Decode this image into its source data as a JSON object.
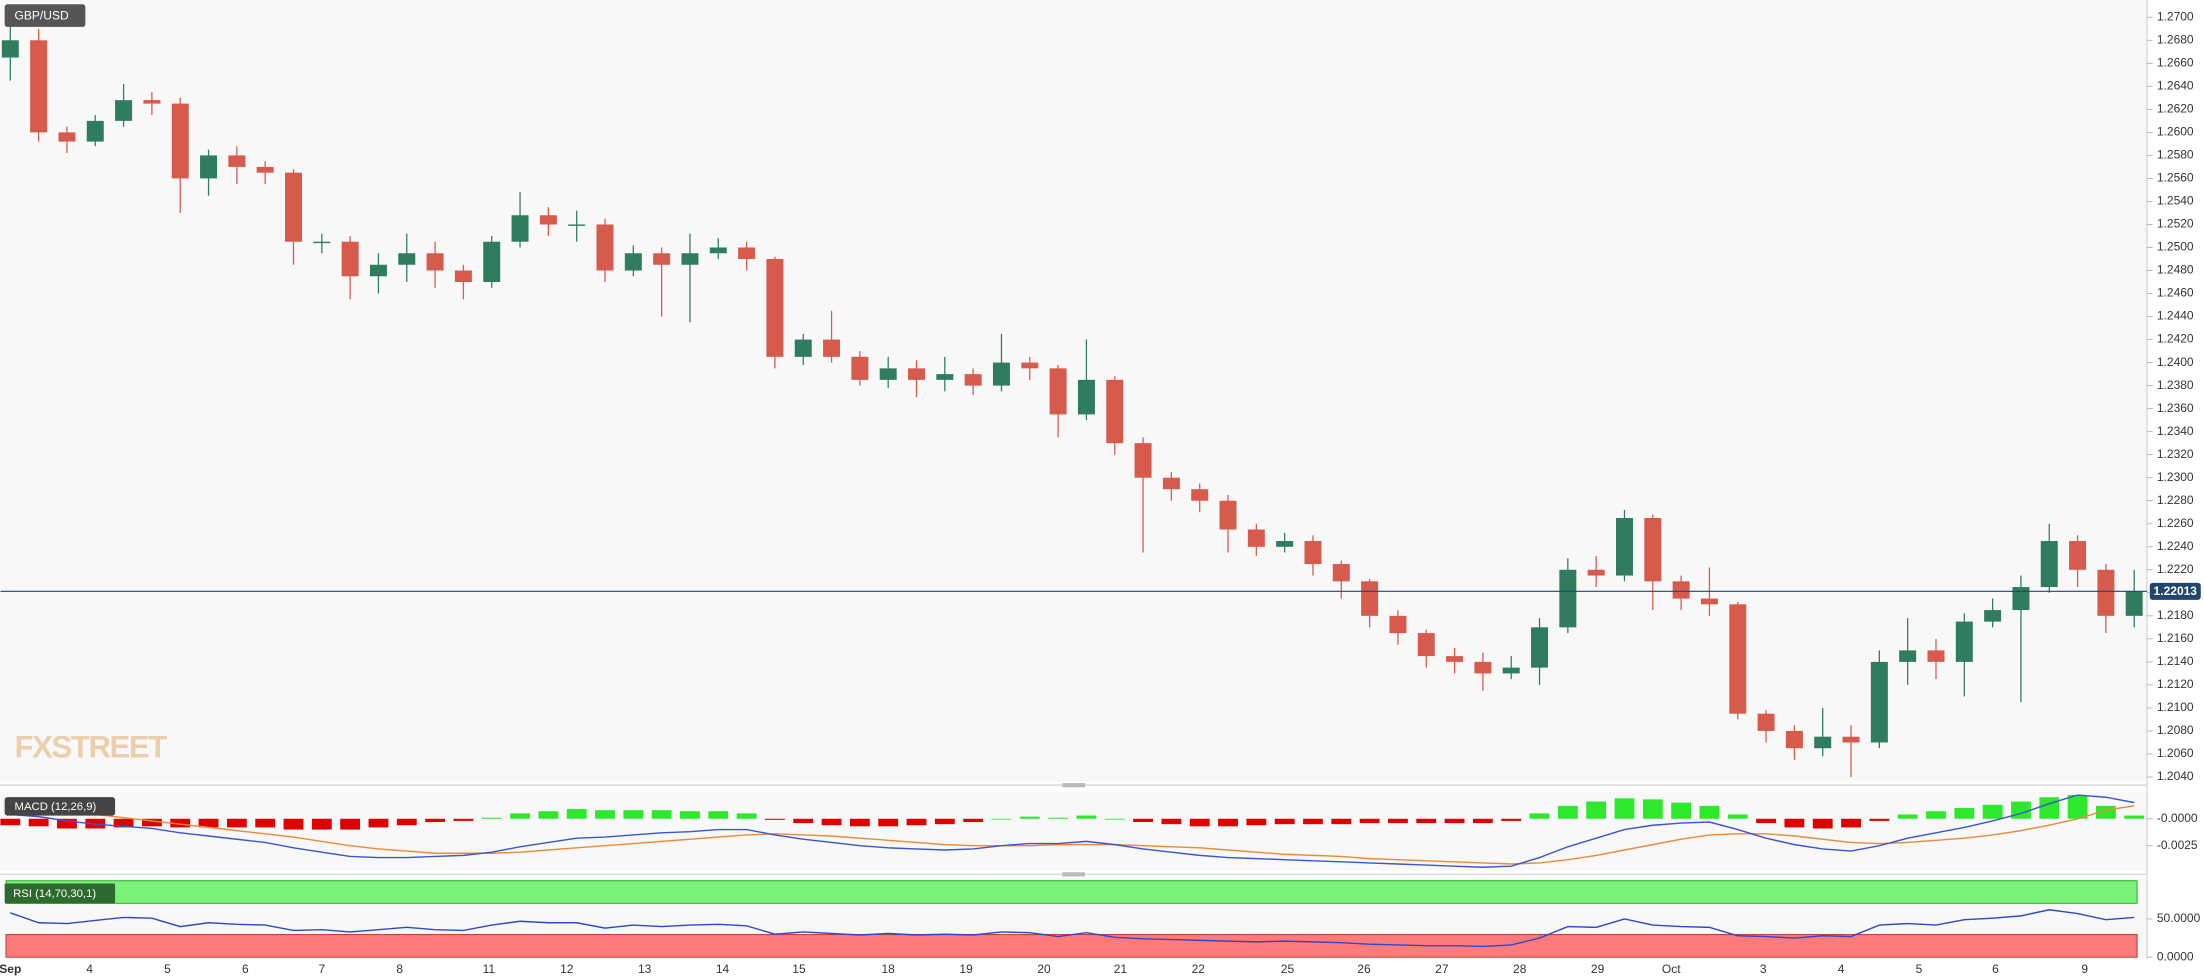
{
  "chart_data": [
    {
      "type": "candlestick",
      "title": "GBP/USD",
      "watermark": "FXSTREET",
      "up_color": "#2f7d5e",
      "down_color": "#d65b4d",
      "grid": true,
      "last_price": 1.22013,
      "last_price_color": "#22456e",
      "open": [
        1.2665,
        1.268,
        1.26,
        1.2592,
        1.261,
        1.2628,
        1.2625,
        1.256,
        1.258,
        1.257,
        1.2565,
        1.2505,
        1.2505,
        1.2475,
        1.2485,
        1.2495,
        1.248,
        1.247,
        1.2505,
        1.2528,
        1.252,
        1.252,
        1.248,
        1.2495,
        1.2485,
        1.2495,
        1.25,
        1.249,
        1.2405,
        1.242,
        1.2405,
        1.2385,
        1.2395,
        1.2385,
        1.239,
        1.238,
        1.24,
        1.2395,
        1.2355,
        1.2385,
        1.233,
        1.23,
        1.229,
        1.228,
        1.2255,
        1.224,
        1.2245,
        1.2225,
        1.221,
        1.218,
        1.2165,
        1.2145,
        1.214,
        1.213,
        1.2135,
        1.217,
        1.222,
        1.2215,
        1.2265,
        1.221,
        1.2195,
        1.219,
        1.2095,
        1.208,
        1.2065,
        1.2075,
        1.207,
        1.214,
        1.215,
        1.214,
        1.2175,
        1.2185,
        1.2205,
        1.2245,
        1.222,
        1.218
      ],
      "high": [
        1.2695,
        1.269,
        1.2605,
        1.2615,
        1.2642,
        1.2635,
        1.263,
        1.2585,
        1.2588,
        1.2575,
        1.2568,
        1.2512,
        1.251,
        1.2495,
        1.2512,
        1.2505,
        1.2485,
        1.251,
        1.2548,
        1.2535,
        1.2532,
        1.2525,
        1.2502,
        1.25,
        1.2512,
        1.2508,
        1.2505,
        1.2492,
        1.2425,
        1.2445,
        1.241,
        1.2405,
        1.2402,
        1.2405,
        1.2395,
        1.2425,
        1.2405,
        1.2398,
        1.242,
        1.2388,
        1.2335,
        1.2305,
        1.2295,
        1.2285,
        1.226,
        1.2252,
        1.225,
        1.2228,
        1.2212,
        1.2185,
        1.2168,
        1.2152,
        1.2148,
        1.2145,
        1.2178,
        1.223,
        1.2232,
        1.2272,
        1.2268,
        1.2215,
        1.2222,
        1.2192,
        1.2098,
        1.2085,
        1.21,
        1.2085,
        1.215,
        1.2178,
        1.216,
        1.2182,
        1.2195,
        1.2215,
        1.226,
        1.225,
        1.2225,
        1.222
      ],
      "low": [
        1.2645,
        1.2592,
        1.2582,
        1.2588,
        1.2605,
        1.2615,
        1.253,
        1.2545,
        1.2555,
        1.2555,
        1.2485,
        1.2495,
        1.2455,
        1.246,
        1.247,
        1.2465,
        1.2455,
        1.2465,
        1.25,
        1.251,
        1.2505,
        1.247,
        1.2475,
        1.244,
        1.2435,
        1.249,
        1.248,
        1.2395,
        1.2398,
        1.24,
        1.238,
        1.2378,
        1.237,
        1.2375,
        1.2372,
        1.2375,
        1.2385,
        1.2335,
        1.235,
        1.232,
        1.2235,
        1.228,
        1.227,
        1.2235,
        1.2232,
        1.2235,
        1.2215,
        1.2195,
        1.217,
        1.2155,
        1.2135,
        1.213,
        1.2115,
        1.2125,
        1.212,
        1.2165,
        1.2205,
        1.221,
        1.2185,
        1.2185,
        1.218,
        1.209,
        1.207,
        1.2055,
        1.2058,
        1.204,
        1.2065,
        1.212,
        1.2125,
        1.211,
        1.217,
        1.2105,
        1.22,
        1.2205,
        1.2165,
        1.217
      ],
      "close": [
        1.268,
        1.26,
        1.2592,
        1.261,
        1.2628,
        1.2625,
        1.256,
        1.258,
        1.257,
        1.2565,
        1.2505,
        1.2505,
        1.2475,
        1.2485,
        1.2495,
        1.248,
        1.247,
        1.2505,
        1.2528,
        1.252,
        1.252,
        1.248,
        1.2495,
        1.2485,
        1.2495,
        1.25,
        1.249,
        1.2405,
        1.242,
        1.2405,
        1.2385,
        1.2395,
        1.2385,
        1.239,
        1.238,
        1.24,
        1.2395,
        1.2355,
        1.2385,
        1.233,
        1.23,
        1.229,
        1.228,
        1.2255,
        1.224,
        1.2245,
        1.2225,
        1.221,
        1.218,
        1.2165,
        1.2145,
        1.214,
        1.213,
        1.2135,
        1.217,
        1.222,
        1.2215,
        1.2265,
        1.221,
        1.2195,
        1.219,
        1.2095,
        1.208,
        1.2065,
        1.2075,
        1.207,
        1.214,
        1.215,
        1.214,
        1.2175,
        1.2185,
        1.2205,
        1.2245,
        1.222,
        1.218,
        1.22013
      ],
      "ylim": [
        1.2036,
        1.2715
      ],
      "yticks": [
        {
          "value": 1.204,
          "label": "1.2040"
        },
        {
          "value": 1.206,
          "label": "1.2060"
        },
        {
          "value": 1.208,
          "label": "1.2080"
        },
        {
          "value": 1.21,
          "label": "1.2100"
        },
        {
          "value": 1.212,
          "label": "1.2120"
        },
        {
          "value": 1.214,
          "label": "1.2140"
        },
        {
          "value": 1.216,
          "label": "1.2160"
        },
        {
          "value": 1.218,
          "label": "1.2180"
        },
        {
          "value": 1.22,
          "label": "1.2200"
        },
        {
          "value": 1.222,
          "label": "1.2220"
        },
        {
          "value": 1.224,
          "label": "1.2240"
        },
        {
          "value": 1.226,
          "label": "1.2260"
        },
        {
          "value": 1.228,
          "label": "1.2280"
        },
        {
          "value": 1.23,
          "label": "1.2300"
        },
        {
          "value": 1.232,
          "label": "1.2320"
        },
        {
          "value": 1.234,
          "label": "1.2340"
        },
        {
          "value": 1.236,
          "label": "1.2360"
        },
        {
          "value": 1.238,
          "label": "1.2380"
        },
        {
          "value": 1.24,
          "label": "1.2400"
        },
        {
          "value": 1.242,
          "label": "1.2420"
        },
        {
          "value": 1.244,
          "label": "1.2440"
        },
        {
          "value": 1.246,
          "label": "1.2460"
        },
        {
          "value": 1.248,
          "label": "1.2480"
        },
        {
          "value": 1.25,
          "label": "1.2500"
        },
        {
          "value": 1.252,
          "label": "1.2520"
        },
        {
          "value": 1.254,
          "label": "1.2540"
        },
        {
          "value": 1.256,
          "label": "1.2560"
        },
        {
          "value": 1.258,
          "label": "1.2580"
        },
        {
          "value": 1.26,
          "label": "1.2600"
        },
        {
          "value": 1.262,
          "label": "1.2620"
        },
        {
          "value": 1.264,
          "label": "1.2640"
        },
        {
          "value": 1.266,
          "label": "1.2660"
        },
        {
          "value": 1.268,
          "label": "1.2680"
        },
        {
          "value": 1.27,
          "label": "1.2700"
        }
      ],
      "xlim": [
        -0.35,
        75.45
      ],
      "xticks": [
        {
          "value": 0,
          "label": "Sep"
        },
        {
          "value": 2.8,
          "label": "4"
        },
        {
          "value": 5.55,
          "label": "5"
        },
        {
          "value": 8.3,
          "label": "6"
        },
        {
          "value": 11,
          "label": "7"
        },
        {
          "value": 13.75,
          "label": "8"
        },
        {
          "value": 16.9,
          "label": "11"
        },
        {
          "value": 19.65,
          "label": "12"
        },
        {
          "value": 22.4,
          "label": "13"
        },
        {
          "value": 25.15,
          "label": "14"
        },
        {
          "value": 27.85,
          "label": "15"
        },
        {
          "value": 31,
          "label": "18"
        },
        {
          "value": 33.75,
          "label": "19"
        },
        {
          "value": 36.5,
          "label": "20"
        },
        {
          "value": 39.2,
          "label": "21"
        },
        {
          "value": 41.95,
          "label": "22"
        },
        {
          "value": 45.1,
          "label": "25"
        },
        {
          "value": 47.8,
          "label": "26"
        },
        {
          "value": 50.55,
          "label": "27"
        },
        {
          "value": 53.3,
          "label": "28"
        },
        {
          "value": 56.05,
          "label": "29"
        },
        {
          "value": 58.65,
          "label": "Oct"
        },
        {
          "value": 61.9,
          "label": "3"
        },
        {
          "value": 64.65,
          "label": "4"
        },
        {
          "value": 67.4,
          "label": "5"
        },
        {
          "value": 70.1,
          "label": "6"
        },
        {
          "value": 73.25,
          "label": "9"
        }
      ]
    },
    {
      "type": "macd",
      "title": "MACD (12,26,9)",
      "macd_color": "#3b55d0",
      "signal_color": "#ec8a3c",
      "positive_color": "#2ee82e",
      "negative_color": "#e00000",
      "macd": [
        0.0004,
        0.0002,
        -0.0002,
        -0.0005,
        -0.0007,
        -0.0009,
        -0.0013,
        -0.0016,
        -0.0019,
        -0.0022,
        -0.0027,
        -0.0031,
        -0.0035,
        -0.0036,
        -0.0036,
        -0.0035,
        -0.0034,
        -0.0031,
        -0.0026,
        -0.0022,
        -0.0018,
        -0.0017,
        -0.0015,
        -0.0013,
        -0.0012,
        -0.001,
        -0.001,
        -0.0015,
        -0.0019,
        -0.0022,
        -0.0025,
        -0.0027,
        -0.0028,
        -0.0029,
        -0.0028,
        -0.0025,
        -0.0023,
        -0.0023,
        -0.0021,
        -0.0024,
        -0.0028,
        -0.0031,
        -0.0034,
        -0.0036,
        -0.0037,
        -0.0038,
        -0.0039,
        -0.004,
        -0.0041,
        -0.0042,
        -0.0043,
        -0.0044,
        -0.0045,
        -0.0044,
        -0.0036,
        -0.0026,
        -0.0018,
        -0.001,
        -0.0006,
        -0.0004,
        -0.0003,
        -0.001,
        -0.0018,
        -0.0024,
        -0.0028,
        -0.003,
        -0.0025,
        -0.0018,
        -0.0013,
        -0.0008,
        -0.0002,
        0.0005,
        0.0014,
        0.0022,
        0.002,
        0.0015
      ],
      "signal": [
        0.001,
        0.0009,
        0.0007,
        0.0004,
        0.0001,
        -0.0002,
        -0.0005,
        -0.0008,
        -0.0011,
        -0.0014,
        -0.0017,
        -0.0021,
        -0.0025,
        -0.0028,
        -0.003,
        -0.0032,
        -0.0032,
        -0.0032,
        -0.0031,
        -0.0029,
        -0.0027,
        -0.0025,
        -0.0023,
        -0.0021,
        -0.0019,
        -0.0017,
        -0.0015,
        -0.0014,
        -0.0015,
        -0.0016,
        -0.0018,
        -0.002,
        -0.0022,
        -0.0024,
        -0.0025,
        -0.0025,
        -0.0025,
        -0.0024,
        -0.0024,
        -0.0024,
        -0.0025,
        -0.0026,
        -0.0027,
        -0.0029,
        -0.0031,
        -0.0033,
        -0.0034,
        -0.0035,
        -0.0037,
        -0.0038,
        -0.0039,
        -0.004,
        -0.0041,
        -0.0042,
        -0.0041,
        -0.0038,
        -0.0034,
        -0.0029,
        -0.0024,
        -0.0019,
        -0.0015,
        -0.0014,
        -0.0014,
        -0.0016,
        -0.0019,
        -0.0022,
        -0.0023,
        -0.0022,
        -0.002,
        -0.0018,
        -0.0015,
        -0.0011,
        -0.0006,
        0.0,
        0.0008,
        0.0012
      ],
      "histogram": [
        -0.0006,
        -0.0007,
        -0.0009,
        -0.0009,
        -0.0008,
        -0.0007,
        -0.0008,
        -0.0008,
        -0.0008,
        -0.0008,
        -0.001,
        -0.001,
        -0.001,
        -0.0008,
        -0.0006,
        -0.0003,
        -0.0002,
        0.0001,
        0.0005,
        0.0007,
        0.0009,
        0.0008,
        0.0008,
        0.0008,
        0.0007,
        0.0007,
        0.0005,
        -0.0001,
        -0.0004,
        -0.0006,
        -0.0007,
        -0.0007,
        -0.0006,
        -0.0005,
        -0.0003,
        0.0,
        0.0002,
        0.0001,
        0.0003,
        0.0,
        -0.0003,
        -0.0005,
        -0.0007,
        -0.0007,
        -0.0006,
        -0.0005,
        -0.0005,
        -0.0005,
        -0.0004,
        -0.0004,
        -0.0004,
        -0.0004,
        -0.0004,
        -0.0002,
        0.0005,
        0.0012,
        0.0016,
        0.0019,
        0.0018,
        0.0015,
        0.0012,
        0.0004,
        -0.0004,
        -0.0008,
        -0.0009,
        -0.0008,
        -0.0002,
        0.0004,
        0.0007,
        0.001,
        0.0013,
        0.0016,
        0.002,
        0.0022,
        0.0012,
        0.0003
      ],
      "ylim": [
        -0.0047,
        0.0024
      ],
      "yticks": [
        {
          "value": 0,
          "label": "-0.0000"
        },
        {
          "value": -0.0025,
          "label": "-0.0025"
        }
      ]
    },
    {
      "type": "rsi",
      "title": "RSI (14,70,30,1)",
      "color": "#3346c8",
      "values": [
        58,
        45,
        44,
        48,
        52,
        51,
        40,
        45,
        43,
        42,
        35,
        36,
        33,
        36,
        39,
        36,
        35,
        42,
        47,
        45,
        45,
        38,
        42,
        40,
        42,
        43,
        41,
        30,
        33,
        31,
        29,
        31,
        29,
        30,
        29,
        33,
        32,
        27,
        32,
        26,
        24,
        23,
        22,
        21,
        20,
        21,
        20,
        19,
        17,
        16,
        15,
        15,
        14,
        16,
        25,
        40,
        39,
        50,
        42,
        40,
        39,
        28,
        27,
        25,
        28,
        27,
        42,
        44,
        42,
        49,
        51,
        54,
        62,
        57,
        49,
        52
      ],
      "ylim": [
        0,
        103.7
      ],
      "yticks": [
        {
          "value": 50,
          "label": "50.0000"
        },
        {
          "value": 0,
          "label": "0.0000"
        }
      ]
    }
  ]
}
